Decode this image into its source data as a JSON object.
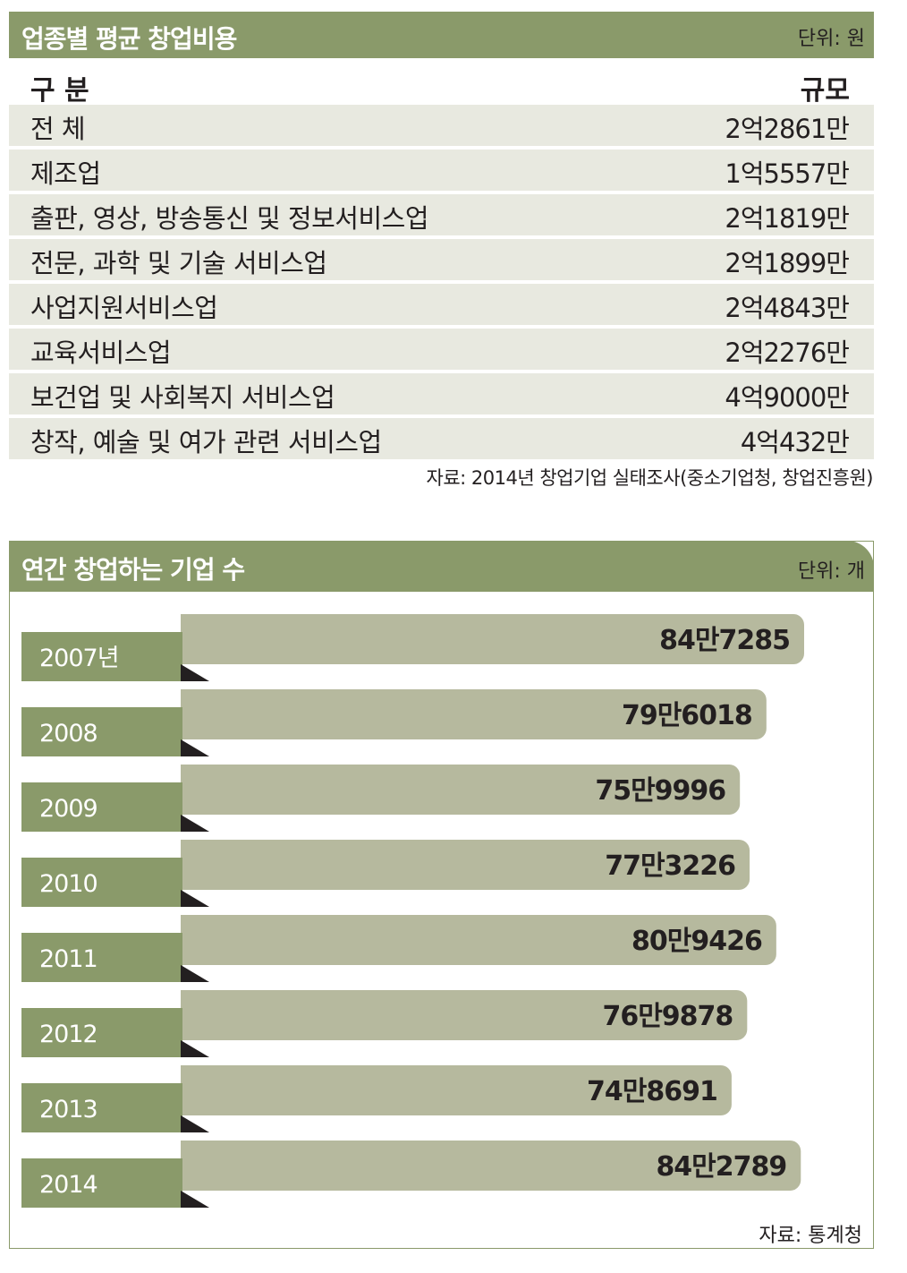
{
  "table": {
    "title": "업종별 평균 창업비용",
    "unit": "단위: 원",
    "col_category": "구 분",
    "col_value": "규모",
    "rows": [
      {
        "category": "전 체",
        "value": "2억2861만"
      },
      {
        "category": "제조업",
        "value": "1억5557만"
      },
      {
        "category": "출판, 영상, 방송통신 및 정보서비스업",
        "value": "2억1819만"
      },
      {
        "category": "전문, 과학 및 기술 서비스업",
        "value": "2억1899만"
      },
      {
        "category": "사업지원서비스업",
        "value": "2억4843만"
      },
      {
        "category": "교육서비스업",
        "value": "2억2276만"
      },
      {
        "category": "보건업 및 사회복지 서비스업",
        "value": "4억9000만"
      },
      {
        "category": "창작, 예술 및 여가 관련 서비스업",
        "value": "4억432만"
      }
    ],
    "source": "자료: 2014년 창업기업 실태조사(중소기업청, 창업진흥원)"
  },
  "chart": {
    "title": "연간 창업하는 기업 수",
    "unit": "단위: 개",
    "source": "자료: 통계청"
  },
  "colors": {
    "header": "#8a9a6a",
    "bar": "#b6b99e",
    "label_box": "#8a9a6a",
    "row_bg": "#e8e9e0",
    "fold": "#231f20"
  },
  "chart_data": {
    "type": "bar",
    "orientation": "horizontal",
    "title": "연간 창업하는 기업 수",
    "categories": [
      "2007년",
      "2008",
      "2009",
      "2010",
      "2011",
      "2012",
      "2013",
      "2014"
    ],
    "values": [
      847285,
      796018,
      759996,
      773226,
      809426,
      769878,
      748691,
      842789
    ],
    "value_labels": [
      "84만7285",
      "79만6018",
      "75만9996",
      "77만3226",
      "80만9426",
      "76만9878",
      "74만8691",
      "84만2789"
    ],
    "ylabel": "단위: 개"
  }
}
